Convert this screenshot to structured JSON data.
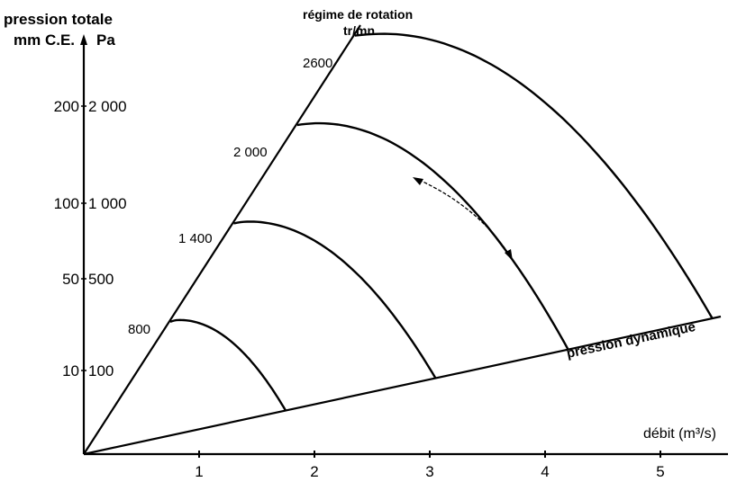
{
  "chart_data": {
    "type": "line",
    "title": "",
    "y_axis": {
      "label_line1": "pression totale",
      "label_line2": "mm C.E.",
      "label_line3": "Pa",
      "ticks_mmce": [
        "200",
        "100",
        "50",
        "10"
      ],
      "ticks_pa": [
        "2 000",
        "1 000",
        "500",
        "100"
      ]
    },
    "x_axis": {
      "label": "débit (m³/s)",
      "ticks": [
        "1",
        "2",
        "3",
        "4",
        "5"
      ],
      "range": [
        0,
        5.5
      ]
    },
    "rotation_axis": {
      "label_line1": "régime de rotation",
      "label_line2": "tr/mn"
    },
    "dynamic_pressure_label": "pression dynamique",
    "series": [
      {
        "name": "800",
        "x_start": 0.75,
        "x_end": 1.75
      },
      {
        "name": "1 400",
        "x_start": 1.3,
        "x_end": 3.05
      },
      {
        "name": "2 000",
        "x_start": 1.85,
        "x_end": 4.2
      },
      {
        "name": "2600",
        "x_start": 2.35,
        "x_end": 5.45
      }
    ]
  }
}
